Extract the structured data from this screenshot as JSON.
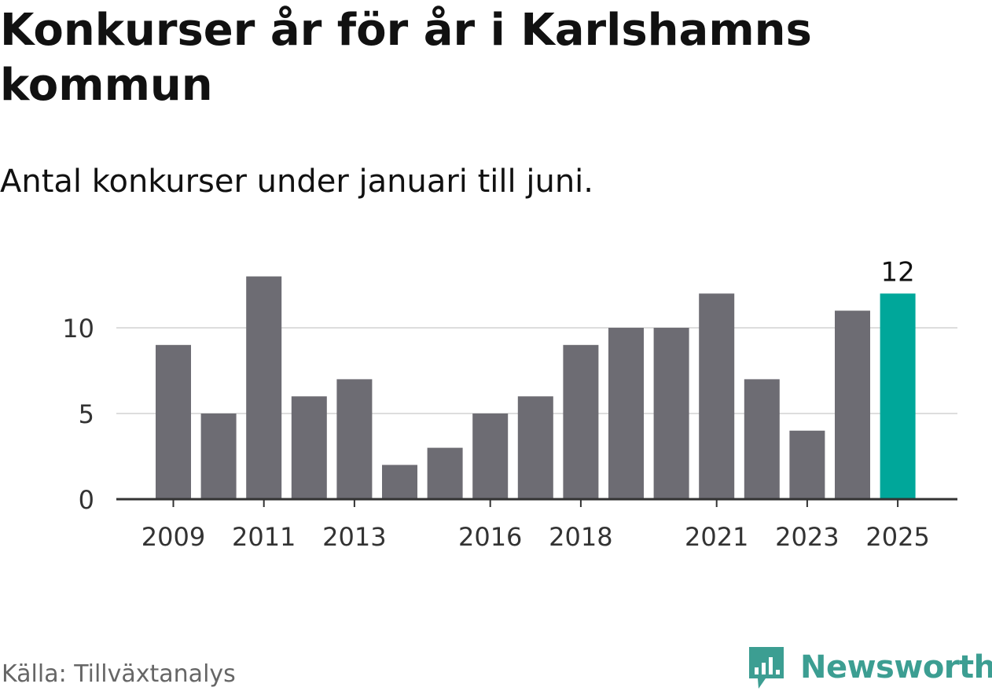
{
  "title": "Konkurser år för år i Karlshamns kommun",
  "subtitle": "Antal konkurser under januari till juni.",
  "source": "Källa: Tillväxtanalys",
  "brand": {
    "name": "Newsworthy",
    "color": "#3c9e92",
    "icon": "newsworthy-logo-icon"
  },
  "colors": {
    "bar": "#6d6c73",
    "highlight": "#00a79a",
    "grid": "#dddddd",
    "axis": "#333333",
    "text": "#333333"
  },
  "chart_data": {
    "type": "bar",
    "categories": [
      "2009",
      "2010",
      "2011",
      "2012",
      "2013",
      "2014",
      "2015",
      "2016",
      "2017",
      "2018",
      "2019",
      "2020",
      "2021",
      "2022",
      "2023",
      "2024",
      "2025"
    ],
    "values": [
      9,
      5,
      13,
      6,
      7,
      2,
      3,
      5,
      6,
      9,
      10,
      10,
      12,
      7,
      4,
      11,
      12
    ],
    "x_tick_labels": [
      "2009",
      "2011",
      "2013",
      "2016",
      "2018",
      "2021",
      "2023",
      "2025"
    ],
    "y_ticks": [
      0,
      5,
      10
    ],
    "ylim": [
      0,
      13
    ],
    "highlight_category": "2025",
    "data_labels": [
      {
        "category": "2025",
        "text": "12"
      }
    ],
    "grid": true,
    "title": "Konkurser år för år i Karlshamns kommun",
    "xlabel": "",
    "ylabel": ""
  }
}
